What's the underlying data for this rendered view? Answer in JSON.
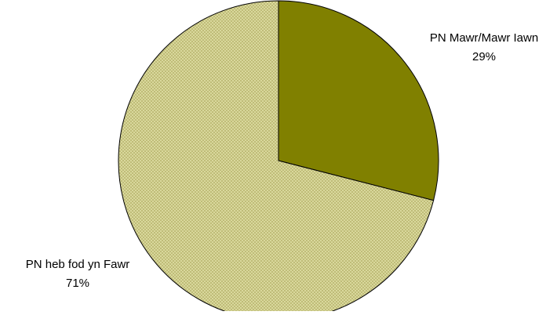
{
  "chart_data": {
    "type": "pie",
    "title": "",
    "start_angle_deg": 0,
    "direction": "clockwise",
    "legend": "none",
    "slices": [
      {
        "label": "PN Mawr/Mawr Iawn",
        "value": 29,
        "percent_label": "29%",
        "color": "#808000",
        "pattern": "solid"
      },
      {
        "label": "PN heb fod yn Fawr",
        "value": 71,
        "percent_label": "71%",
        "color": "#d9d89c",
        "pattern": "fine-checker",
        "pattern_color": "#a9a55a"
      }
    ],
    "outline_color": "#000000"
  }
}
